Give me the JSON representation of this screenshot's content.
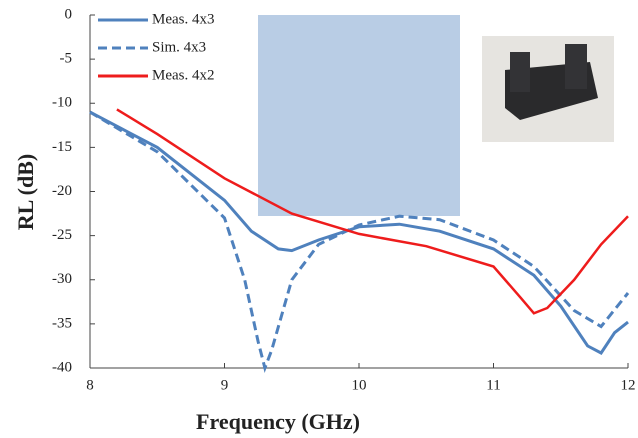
{
  "chart_data": {
    "type": "line",
    "x_label": "Frequency (GHz)",
    "y_label": "RL (dB)",
    "xlim": [
      8,
      12
    ],
    "xticks": [
      8,
      9,
      10,
      11,
      12
    ],
    "ylim": [
      -40,
      0
    ],
    "yticks": [
      0,
      -5,
      -10,
      -15,
      -20,
      -25,
      -30,
      -35,
      -40
    ],
    "legend": "upper left",
    "series": [
      {
        "name": "Meas. 4x3",
        "color": "#4f81bd",
        "dash": false,
        "x": [
          8,
          8.5,
          9,
          9.2,
          9.4,
          9.5,
          9.7,
          10,
          10.3,
          10.6,
          11,
          11.3,
          11.5,
          11.7,
          11.8,
          11.9,
          12
        ],
        "values": [
          -11,
          -15,
          -21,
          -24.5,
          -26.5,
          -26.7,
          -25.5,
          -24,
          -23.7,
          -24.5,
          -26.5,
          -29.5,
          -33,
          -37.5,
          -38.3,
          -36,
          -34.8
        ]
      },
      {
        "name": "Sim. 4x3",
        "color": "#4f81bd",
        "dash": true,
        "x": [
          8,
          8.5,
          9,
          9.15,
          9.25,
          9.3,
          9.35,
          9.5,
          9.7,
          10,
          10.3,
          10.6,
          11,
          11.3,
          11.6,
          11.8,
          12
        ],
        "values": [
          -11,
          -15.5,
          -23,
          -30,
          -37,
          -40,
          -38,
          -30,
          -26,
          -23.8,
          -22.8,
          -23.2,
          -25.5,
          -28.5,
          -33.5,
          -35.3,
          -31.5
        ]
      },
      {
        "name": "Meas. 4x2",
        "color": "#ee1c1c",
        "dash": false,
        "x": [
          8.2,
          8.5,
          9,
          9.5,
          10,
          10.5,
          11,
          11.2,
          11.3,
          11.4,
          11.6,
          11.8,
          12
        ],
        "values": [
          -10.7,
          -13.5,
          -18.5,
          -22.5,
          -24.8,
          -26.2,
          -28.5,
          -32,
          -33.8,
          -33.2,
          -30,
          -26,
          -22.8
        ]
      }
    ]
  }
}
